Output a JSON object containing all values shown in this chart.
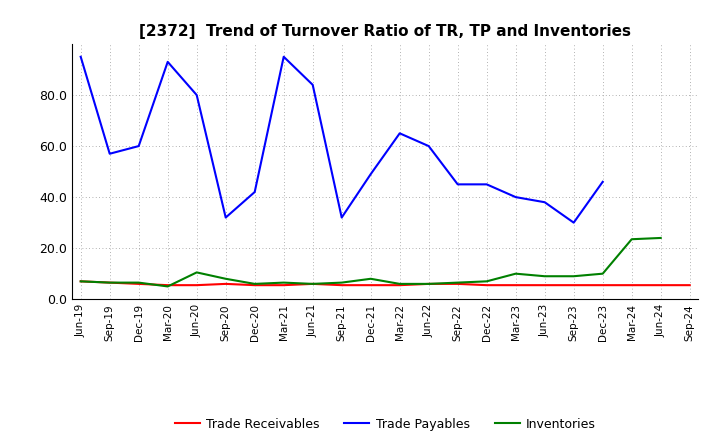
{
  "title": "[2372]  Trend of Turnover Ratio of TR, TP and Inventories",
  "x_labels": [
    "Jun-19",
    "Sep-19",
    "Dec-19",
    "Mar-20",
    "Jun-20",
    "Sep-20",
    "Dec-20",
    "Mar-21",
    "Jun-21",
    "Sep-21",
    "Dec-21",
    "Mar-22",
    "Jun-22",
    "Sep-22",
    "Dec-22",
    "Mar-23",
    "Jun-23",
    "Sep-23",
    "Dec-23",
    "Mar-24",
    "Jun-24",
    "Sep-24"
  ],
  "trade_receivables": [
    7.0,
    6.5,
    6.0,
    5.5,
    5.5,
    6.0,
    5.5,
    5.5,
    6.0,
    5.5,
    5.5,
    5.5,
    6.0,
    6.0,
    5.5,
    5.5,
    5.5,
    5.5,
    5.5,
    5.5,
    5.5,
    5.5
  ],
  "trade_payables": [
    95.0,
    57.0,
    60.0,
    93.0,
    80.0,
    32.0,
    42.0,
    95.0,
    84.0,
    32.0,
    49.0,
    65.0,
    60.0,
    45.0,
    45.0,
    40.0,
    38.0,
    30.0,
    46.0,
    null,
    null,
    null
  ],
  "inventories": [
    7.0,
    6.5,
    6.5,
    5.0,
    10.5,
    8.0,
    6.0,
    6.5,
    6.0,
    6.5,
    8.0,
    6.0,
    6.0,
    6.5,
    7.0,
    10.0,
    9.0,
    9.0,
    10.0,
    23.5,
    24.0,
    null
  ],
  "ylim": [
    0.0,
    100.0
  ],
  "yticks": [
    0.0,
    20.0,
    40.0,
    60.0,
    80.0
  ],
  "color_tr": "#ff0000",
  "color_tp": "#0000ff",
  "color_inv": "#008000",
  "legend_labels": [
    "Trade Receivables",
    "Trade Payables",
    "Inventories"
  ],
  "background_color": "#ffffff",
  "grid_color": "#999999"
}
